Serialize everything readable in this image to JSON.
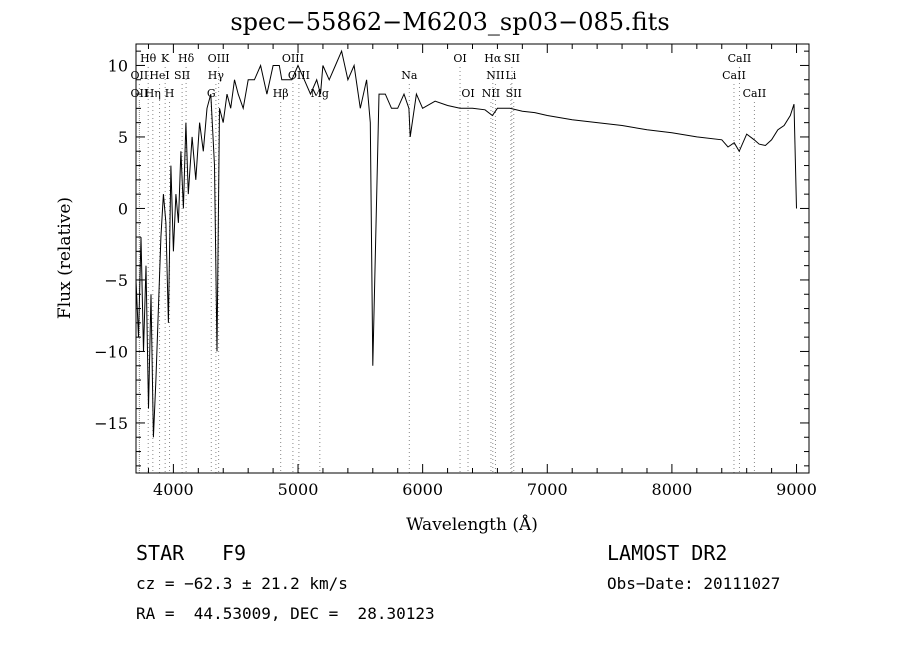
{
  "chart_data": {
    "type": "line",
    "title": "spec−55862−M6203_sp03−085.fits",
    "xlabel": "Wavelength (Å)",
    "ylabel": "Flux (relative)",
    "xlim": [
      3700,
      9100
    ],
    "ylim": [
      -18.5,
      11.5
    ],
    "xticks": [
      4000,
      5000,
      6000,
      7000,
      8000,
      9000
    ],
    "yticks": [
      10,
      5,
      0,
      -5,
      -10,
      -15
    ],
    "ytick_labels": [
      "10",
      "5",
      "0",
      "−5",
      "−10",
      "−15"
    ],
    "grid": false,
    "series": [
      {
        "x": [
          3700,
          3720,
          3740,
          3760,
          3780,
          3800,
          3820,
          3840,
          3860,
          3880,
          3900,
          3920,
          3940,
          3960,
          3980,
          4000,
          4020,
          4040,
          4060,
          4080,
          4100,
          4120,
          4150,
          4180,
          4210,
          4240,
          4270,
          4300,
          4330,
          4350,
          4370,
          4400,
          4430,
          4460,
          4490,
          4520,
          4560,
          4600,
          4650,
          4700,
          4750,
          4800,
          4850,
          4870,
          4900,
          4950,
          5000,
          5050,
          5100,
          5150,
          5180,
          5200,
          5250,
          5300,
          5350,
          5400,
          5450,
          5500,
          5550,
          5580,
          5600,
          5650,
          5700,
          5750,
          5800,
          5850,
          5890,
          5900,
          5950,
          6000,
          6100,
          6200,
          6300,
          6400,
          6500,
          6560,
          6600,
          6700,
          6800,
          6900,
          7000,
          7200,
          7400,
          7600,
          7800,
          8000,
          8200,
          8400,
          8450,
          8500,
          8540,
          8600,
          8660,
          8700,
          8750,
          8800,
          8850,
          8900,
          8950,
          8980,
          9000
        ],
        "y": [
          -5,
          -9,
          -2,
          -10,
          -4,
          -14,
          -6,
          -16,
          -12,
          -7,
          -2,
          1,
          -1,
          -8,
          3,
          -3,
          1,
          -1,
          4,
          0,
          6,
          1,
          5,
          2,
          6,
          4,
          7,
          8,
          3,
          -10,
          7,
          6,
          8,
          7,
          9,
          8,
          7,
          9,
          9,
          10,
          8,
          10,
          10,
          9,
          9,
          9,
          10,
          9,
          8,
          9,
          8,
          10,
          9,
          10,
          11,
          9,
          10,
          7,
          9,
          6,
          -11,
          8,
          8,
          7,
          7,
          8,
          7,
          5,
          8,
          7,
          7.5,
          7.2,
          7,
          7,
          6.9,
          6.5,
          7,
          7,
          6.8,
          6.7,
          6.5,
          6.2,
          6,
          5.8,
          5.5,
          5.3,
          5,
          4.8,
          4.3,
          4.6,
          4,
          5.2,
          4.8,
          4.5,
          4.4,
          4.8,
          5.5,
          5.8,
          6.5,
          7.3,
          0
        ]
      }
    ],
    "lines": [
      {
        "name": "Hθ",
        "x": 3798,
        "row": 1
      },
      {
        "name": "K",
        "x": 3934,
        "row": 1
      },
      {
        "name": "Hδ",
        "x": 4102,
        "row": 1
      },
      {
        "name": "OIII",
        "x": 4363,
        "row": 1
      },
      {
        "name": "OII",
        "x": 3727,
        "row": 2
      },
      {
        "name": "HeI",
        "x": 3889,
        "row": 2
      },
      {
        "name": "SII",
        "x": 4070,
        "row": 2
      },
      {
        "name": "Hγ",
        "x": 4341,
        "row": 2
      },
      {
        "name": "OII",
        "x": 3727,
        "row": 3
      },
      {
        "name": "Hη",
        "x": 3835,
        "row": 3
      },
      {
        "name": "H",
        "x": 3969,
        "row": 3
      },
      {
        "name": "G",
        "x": 4304,
        "row": 3
      },
      {
        "name": "OIII",
        "x": 4959,
        "row": 1
      },
      {
        "name": "OIII",
        "x": 5007,
        "row": 2
      },
      {
        "name": "Hβ",
        "x": 4861,
        "row": 3
      },
      {
        "name": "Mg",
        "x": 5175,
        "row": 3
      },
      {
        "name": "Na",
        "x": 5893,
        "row": 2
      },
      {
        "name": "OI",
        "x": 6300,
        "row": 1
      },
      {
        "name": "OI",
        "x": 6364,
        "row": 3
      },
      {
        "name": "Hα",
        "x": 6563,
        "row": 1
      },
      {
        "name": "SII",
        "x": 6716,
        "row": 1
      },
      {
        "name": "NII",
        "x": 6584,
        "row": 2
      },
      {
        "name": "Li",
        "x": 6708,
        "row": 2
      },
      {
        "name": "NII",
        "x": 6548,
        "row": 3
      },
      {
        "name": "SII",
        "x": 6731,
        "row": 3
      },
      {
        "name": "CaII",
        "x": 8542,
        "row": 1
      },
      {
        "name": "CaII",
        "x": 8498,
        "row": 2
      },
      {
        "name": "CaII",
        "x": 8662,
        "row": 3
      }
    ]
  },
  "info": {
    "class_label": "STAR",
    "subclass": "F9",
    "survey": "LAMOST DR2",
    "cz": "cz = −62.3 ± 21.2 km/s",
    "obs_date": "Obs−Date: 20111027",
    "radec": "RA =  44.53009, DEC =  28.30123"
  }
}
